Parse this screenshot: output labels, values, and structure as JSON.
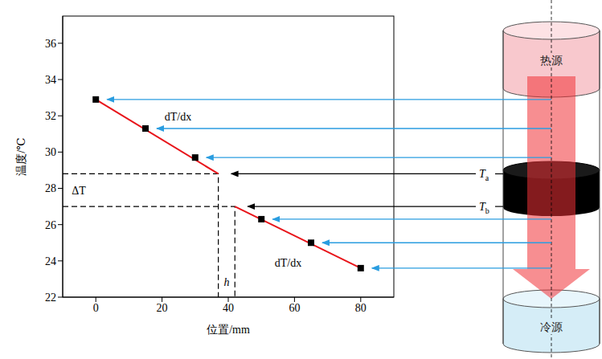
{
  "chart_data": {
    "type": "scatter",
    "x_label": "位置/mm",
    "y_label": "温度/℃",
    "xlim": [
      -10,
      90
    ],
    "xticks": [
      0,
      20,
      40,
      60,
      80
    ],
    "ylim": [
      22,
      37.5
    ],
    "yticks": [
      22,
      24,
      26,
      28,
      30,
      32,
      34,
      36
    ],
    "grid": false,
    "x": [
      0,
      15,
      30,
      50,
      65,
      80
    ],
    "values": [
      32.9,
      31.3,
      29.7,
      26.3,
      25.0,
      23.6
    ],
    "color": "#000000",
    "marker": "square",
    "fit_lines": [
      {
        "x": [
          0,
          37
        ],
        "values": [
          32.9,
          28.8
        ],
        "color": "#e8141a",
        "label": "dT/dx"
      },
      {
        "x": [
          42,
          80
        ],
        "values": [
          27.0,
          23.6
        ],
        "color": "#e8141a",
        "label": "dT/dx"
      }
    ],
    "interface": {
      "temperature_labels": [
        "Ta",
        "Tb"
      ],
      "difference_label": "ΔT",
      "thickness_label": "h",
      "line_style": "dashed"
    }
  },
  "diagram": {
    "top_label": "热源",
    "bottom_label": "冷源"
  }
}
